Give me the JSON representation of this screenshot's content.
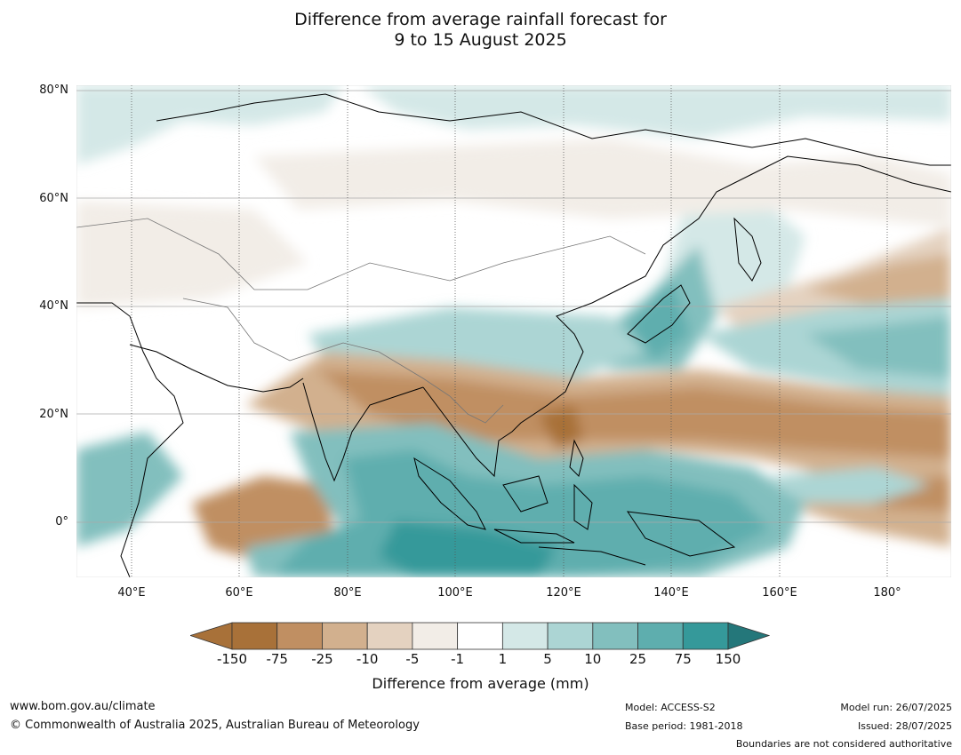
{
  "title": {
    "line1": "Difference from average rainfall forecast for",
    "line2": "9 to 15 August 2025"
  },
  "map": {
    "lat_labels": [
      "80°N",
      "60°N",
      "40°N",
      "20°N",
      "0°"
    ],
    "lon_labels": [
      "40°E",
      "60°E",
      "80°E",
      "100°E",
      "120°E",
      "140°E",
      "160°E",
      "180°"
    ],
    "extent": {
      "lon": [
        30,
        190
      ],
      "lat": [
        -10,
        81
      ]
    }
  },
  "colorbar": {
    "labels": [
      "-150",
      "-75",
      "-25",
      "-10",
      "-5",
      "-1",
      "1",
      "5",
      "10",
      "25",
      "75",
      "150"
    ],
    "colors": [
      "#a87139",
      "#c08f62",
      "#d2b08e",
      "#e4d2c0",
      "#f2ede7",
      "#ffffff",
      "#d4e8e7",
      "#acd5d4",
      "#82bfbe",
      "#5eaeae",
      "#35999a",
      "#24777a"
    ],
    "title": "Difference from average (mm)"
  },
  "footer": {
    "website": "www.bom.gov.au/climate",
    "copyright": "© Commonwealth of Australia 2025, Australian Bureau of Meteorology",
    "model": "Model: ACCESS-S2",
    "base_period": "Base period: 1981-2018",
    "model_run": "Model run: 26/07/2025",
    "issued": "Issued: 28/07/2025",
    "disclaimer": "Boundaries are not considered authoritative"
  }
}
